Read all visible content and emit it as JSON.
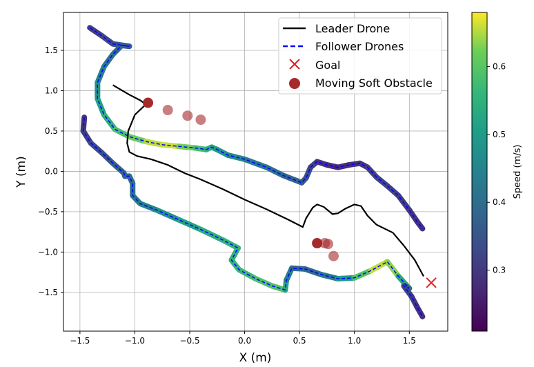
{
  "chart_data": {
    "type": "line",
    "title": "",
    "xlabel": "X (m)",
    "ylabel": "Y (m)",
    "xlim": [
      -1.65,
      1.85
    ],
    "ylim": [
      -1.98,
      1.97
    ],
    "xticks": [
      "−1.5",
      "−1.0",
      "−0.5",
      "0.0",
      "0.5",
      "1.0",
      "1.5"
    ],
    "yticks": [
      "1.5",
      "1.0",
      "0.5",
      "0.0",
      "−0.5",
      "−1.0",
      "−1.5"
    ],
    "grid": true,
    "legend_position": "top-right",
    "legend": [
      {
        "label": "Leader Drone",
        "style": "solid-black-line"
      },
      {
        "label": "Follower Drones",
        "style": "dashed-blue-line"
      },
      {
        "label": "Goal",
        "style": "red-x-marker"
      },
      {
        "label": "Moving Soft Obstacle",
        "style": "dark-red-circle"
      }
    ],
    "colorbar": {
      "label": "Speed (m/s)",
      "range": [
        0.21,
        0.68
      ],
      "ticks": [
        "0.6",
        "0.5",
        "0.4",
        "0.3"
      ],
      "tick_values": [
        0.6,
        0.5,
        0.4,
        0.3
      ],
      "colormap": "viridis"
    },
    "colors": {
      "leader": "#000000",
      "follower": "#0000ff",
      "goal": "#e02020",
      "obstacle": "#a52a2a"
    },
    "goal": {
      "x": 1.7,
      "y": -1.38
    },
    "obstacles": [
      {
        "x": -0.88,
        "y": 0.85,
        "alpha": 1.0
      },
      {
        "x": -0.7,
        "y": 0.76,
        "alpha": 0.6
      },
      {
        "x": -0.52,
        "y": 0.69,
        "alpha": 0.6
      },
      {
        "x": -0.4,
        "y": 0.64,
        "alpha": 0.6
      },
      {
        "x": 0.66,
        "y": -0.89,
        "alpha": 1.0
      },
      {
        "x": 0.73,
        "y": -0.89,
        "alpha": 0.6
      },
      {
        "x": 0.76,
        "y": -0.9,
        "alpha": 0.6
      },
      {
        "x": 0.81,
        "y": -1.05,
        "alpha": 0.6
      }
    ],
    "series": [
      {
        "name": "Leader Drone",
        "role": "leader",
        "points": [
          [
            -1.2,
            1.07
          ],
          [
            -1.05,
            0.95
          ],
          [
            -0.95,
            0.88
          ],
          [
            -0.9,
            0.83
          ],
          [
            -1.0,
            0.7
          ],
          [
            -1.06,
            0.5
          ],
          [
            -1.07,
            0.35
          ],
          [
            -1.05,
            0.24
          ],
          [
            -0.98,
            0.19
          ],
          [
            -0.85,
            0.15
          ],
          [
            -0.7,
            0.08
          ],
          [
            -0.55,
            -0.02
          ],
          [
            -0.4,
            -0.1
          ],
          [
            -0.2,
            -0.22
          ],
          [
            0.0,
            -0.35
          ],
          [
            0.2,
            -0.47
          ],
          [
            0.4,
            -0.6
          ],
          [
            0.53,
            -0.69
          ],
          [
            0.56,
            -0.58
          ],
          [
            0.62,
            -0.45
          ],
          [
            0.66,
            -0.41
          ],
          [
            0.72,
            -0.44
          ],
          [
            0.8,
            -0.53
          ],
          [
            0.85,
            -0.52
          ],
          [
            0.92,
            -0.46
          ],
          [
            1.0,
            -0.41
          ],
          [
            1.06,
            -0.43
          ],
          [
            1.12,
            -0.55
          ],
          [
            1.2,
            -0.66
          ],
          [
            1.35,
            -0.76
          ],
          [
            1.45,
            -0.92
          ],
          [
            1.55,
            -1.1
          ],
          [
            1.63,
            -1.3
          ]
        ]
      },
      {
        "name": "Follower Drones",
        "role": "follower",
        "points": [
          [
            -1.41,
            1.78,
            0.3
          ],
          [
            -1.3,
            1.68,
            0.31
          ],
          [
            -1.2,
            1.58,
            0.33
          ],
          [
            -1.1,
            1.56,
            0.35
          ],
          [
            -1.05,
            1.55,
            0.36
          ],
          [
            -1.12,
            1.56,
            0.37
          ],
          [
            -1.2,
            1.45,
            0.4
          ],
          [
            -1.28,
            1.3,
            0.43
          ],
          [
            -1.34,
            1.1,
            0.46
          ],
          [
            -1.34,
            0.9,
            0.5
          ],
          [
            -1.28,
            0.7,
            0.53
          ],
          [
            -1.18,
            0.52,
            0.57
          ],
          [
            -1.05,
            0.43,
            0.6
          ],
          [
            -0.9,
            0.37,
            0.64
          ],
          [
            -0.75,
            0.33,
            0.67
          ],
          [
            -0.6,
            0.31,
            0.65
          ],
          [
            -0.45,
            0.29,
            0.6
          ],
          [
            -0.35,
            0.27,
            0.56
          ],
          [
            -0.3,
            0.3,
            0.54
          ],
          [
            -0.25,
            0.27,
            0.5
          ],
          [
            -0.15,
            0.2,
            0.48
          ],
          [
            0.0,
            0.15,
            0.44
          ],
          [
            0.2,
            0.05,
            0.42
          ],
          [
            0.35,
            -0.05,
            0.4
          ],
          [
            0.52,
            -0.14,
            0.37
          ],
          [
            0.56,
            -0.08,
            0.35
          ],
          [
            0.6,
            0.05,
            0.33
          ],
          [
            0.66,
            0.12,
            0.3
          ],
          [
            0.75,
            0.08,
            0.28
          ],
          [
            0.85,
            0.05,
            0.27
          ],
          [
            0.95,
            0.08,
            0.28
          ],
          [
            1.05,
            0.1,
            0.29
          ],
          [
            1.12,
            0.05,
            0.3
          ],
          [
            1.2,
            -0.07,
            0.31
          ],
          [
            1.3,
            -0.18,
            0.32
          ],
          [
            1.4,
            -0.3,
            0.31
          ],
          [
            1.5,
            -0.48,
            0.3
          ],
          [
            1.57,
            -0.62,
            0.29
          ],
          [
            1.62,
            -0.71,
            0.28
          ]
        ]
      },
      {
        "name": "Follower Drones",
        "role": "follower",
        "points": [
          [
            -1.46,
            0.67,
            0.28
          ],
          [
            -1.47,
            0.5,
            0.3
          ],
          [
            -1.4,
            0.35,
            0.32
          ],
          [
            -1.3,
            0.23,
            0.34
          ],
          [
            -1.2,
            0.1,
            0.36
          ],
          [
            -1.1,
            -0.02,
            0.38
          ],
          [
            -1.09,
            -0.06,
            0.38
          ],
          [
            -1.05,
            -0.06,
            0.39
          ],
          [
            -1.02,
            -0.15,
            0.4
          ],
          [
            -1.02,
            -0.3,
            0.41
          ],
          [
            -0.95,
            -0.4,
            0.43
          ],
          [
            -0.8,
            -0.48,
            0.46
          ],
          [
            -0.6,
            -0.6,
            0.5
          ],
          [
            -0.4,
            -0.72,
            0.53
          ],
          [
            -0.2,
            -0.85,
            0.56
          ],
          [
            -0.06,
            -0.95,
            0.56
          ],
          [
            -0.12,
            -1.1,
            0.55
          ],
          [
            -0.05,
            -1.22,
            0.56
          ],
          [
            0.1,
            -1.33,
            0.58
          ],
          [
            0.25,
            -1.42,
            0.6
          ],
          [
            0.37,
            -1.47,
            0.58
          ],
          [
            0.38,
            -1.35,
            0.48
          ],
          [
            0.43,
            -1.2,
            0.4
          ],
          [
            0.55,
            -1.21,
            0.38
          ],
          [
            0.7,
            -1.28,
            0.4
          ],
          [
            0.85,
            -1.33,
            0.45
          ],
          [
            1.0,
            -1.32,
            0.55
          ],
          [
            1.15,
            -1.23,
            0.64
          ],
          [
            1.3,
            -1.12,
            0.67
          ],
          [
            1.4,
            -1.3,
            0.6
          ],
          [
            1.5,
            -1.45,
            0.45
          ],
          [
            1.47,
            -1.43,
            0.35
          ],
          [
            1.45,
            -1.42,
            0.33
          ],
          [
            1.52,
            -1.55,
            0.31
          ],
          [
            1.57,
            -1.68,
            0.29
          ],
          [
            1.62,
            -1.8,
            0.28
          ]
        ]
      }
    ]
  }
}
